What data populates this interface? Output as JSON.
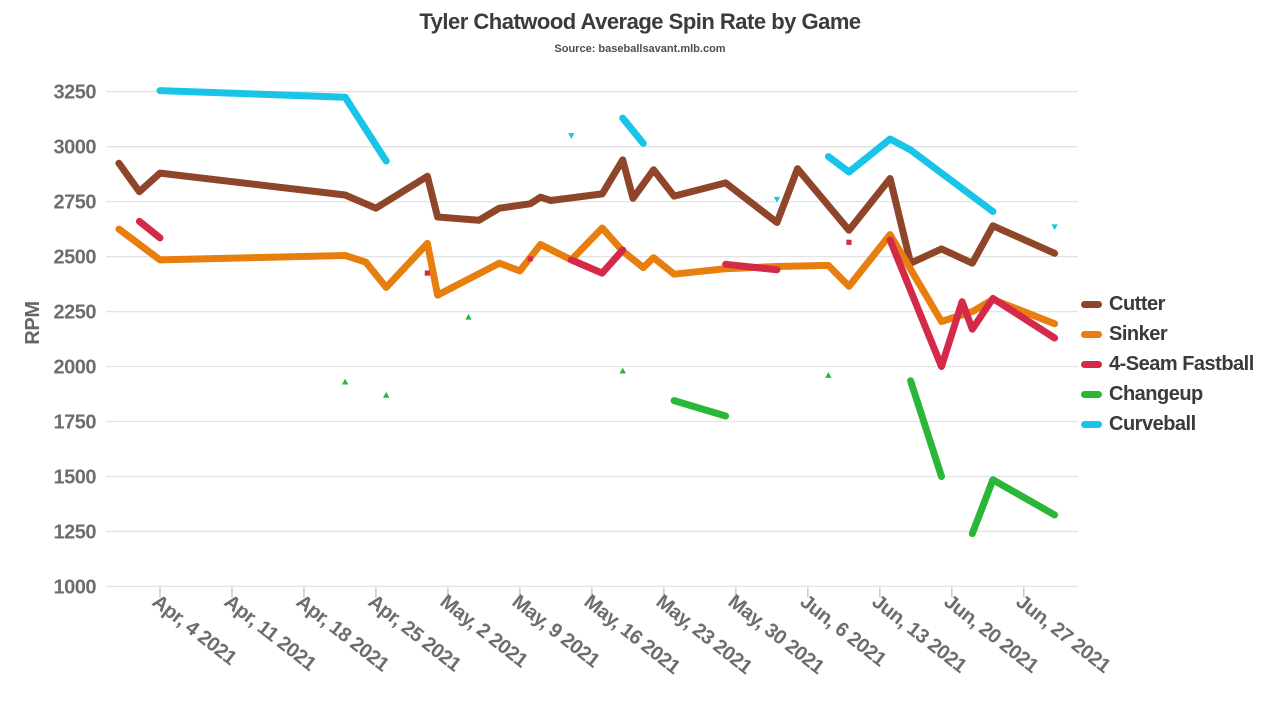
{
  "chart_data": {
    "type": "line",
    "title": "Tyler Chatwood Average Spin Rate by Game",
    "subtitle": "Source: baseballsavant.mlb.com",
    "ylabel": "RPM",
    "ylim": [
      1000,
      3250
    ],
    "y_tick_step": 250,
    "y_ticks": [
      1000,
      1250,
      1500,
      1750,
      2000,
      2250,
      2500,
      2750,
      3000,
      3250
    ],
    "grid": "horizontal",
    "legend_position": "right",
    "x_ticks": [
      {
        "date": "2021-04-04",
        "label": "Apr, 4 2021"
      },
      {
        "date": "2021-04-11",
        "label": "Apr, 11 2021"
      },
      {
        "date": "2021-04-18",
        "label": "Apr, 18 2021"
      },
      {
        "date": "2021-04-25",
        "label": "Apr, 25 2021"
      },
      {
        "date": "2021-05-02",
        "label": "May, 2 2021"
      },
      {
        "date": "2021-05-09",
        "label": "May, 9 2021"
      },
      {
        "date": "2021-05-16",
        "label": "May, 16 2021"
      },
      {
        "date": "2021-05-23",
        "label": "May, 23 2021"
      },
      {
        "date": "2021-05-30",
        "label": "May, 30 2021"
      },
      {
        "date": "2021-06-06",
        "label": "Jun, 6 2021"
      },
      {
        "date": "2021-06-13",
        "label": "Jun, 13 2021"
      },
      {
        "date": "2021-06-20",
        "label": "Jun, 20 2021"
      },
      {
        "date": "2021-06-27",
        "label": "Jun, 27 2021"
      }
    ],
    "series": [
      {
        "name": "Cutter",
        "color": "#8F4529",
        "marker": "square",
        "segments": [
          [
            [
              "2021-03-31",
              2925
            ],
            [
              "2021-04-02",
              2795
            ],
            [
              "2021-04-04",
              2880
            ],
            [
              "2021-04-22",
              2780
            ],
            [
              "2021-04-25",
              2720
            ],
            [
              "2021-04-30",
              2865
            ],
            [
              "2021-05-01",
              2680
            ],
            [
              "2021-05-05",
              2665
            ],
            [
              "2021-05-07",
              2720
            ],
            [
              "2021-05-10",
              2740
            ],
            [
              "2021-05-11",
              2770
            ],
            [
              "2021-05-12",
              2755
            ],
            [
              "2021-05-17",
              2785
            ],
            [
              "2021-05-19",
              2940
            ],
            [
              "2021-05-20",
              2765
            ],
            [
              "2021-05-22",
              2895
            ],
            [
              "2021-05-24",
              2775
            ],
            [
              "2021-05-29",
              2835
            ],
            [
              "2021-06-03",
              2655
            ],
            [
              "2021-06-05",
              2900
            ],
            [
              "2021-06-10",
              2620
            ],
            [
              "2021-06-14",
              2855
            ],
            [
              "2021-06-16",
              2470
            ],
            [
              "2021-06-19",
              2535
            ],
            [
              "2021-06-22",
              2470
            ],
            [
              "2021-06-24",
              2640
            ],
            [
              "2021-06-30",
              2515
            ]
          ]
        ]
      },
      {
        "name": "Sinker",
        "color": "#E87E0E",
        "marker": "square",
        "segments": [
          [
            [
              "2021-03-31",
              2625
            ],
            [
              "2021-04-04",
              2485
            ],
            [
              "2021-04-22",
              2505
            ],
            [
              "2021-04-24",
              2475
            ],
            [
              "2021-04-26",
              2360
            ],
            [
              "2021-04-30",
              2560
            ],
            [
              "2021-05-01",
              2325
            ],
            [
              "2021-05-07",
              2470
            ],
            [
              "2021-05-09",
              2435
            ],
            [
              "2021-05-11",
              2555
            ],
            [
              "2021-05-14",
              2485
            ],
            [
              "2021-05-17",
              2630
            ],
            [
              "2021-05-19",
              2525
            ],
            [
              "2021-05-21",
              2450
            ],
            [
              "2021-05-22",
              2495
            ],
            [
              "2021-05-24",
              2420
            ],
            [
              "2021-05-29",
              2445
            ],
            [
              "2021-06-03",
              2455
            ],
            [
              "2021-06-08",
              2460
            ],
            [
              "2021-06-10",
              2365
            ],
            [
              "2021-06-14",
              2600
            ],
            [
              "2021-06-19",
              2205
            ],
            [
              "2021-06-22",
              2250
            ],
            [
              "2021-06-24",
              2305
            ],
            [
              "2021-06-30",
              2195
            ]
          ]
        ]
      },
      {
        "name": "4-Seam Fastball",
        "color": "#D5294A",
        "marker": "square",
        "segments": [
          [
            [
              "2021-04-02",
              2660
            ],
            [
              "2021-04-04",
              2585
            ]
          ],
          [
            [
              "2021-04-30",
              2425
            ]
          ],
          [
            [
              "2021-05-10",
              2490
            ]
          ],
          [
            [
              "2021-05-14",
              2485
            ],
            [
              "2021-05-17",
              2425
            ],
            [
              "2021-05-19",
              2530
            ]
          ],
          [
            [
              "2021-05-29",
              2465
            ],
            [
              "2021-06-03",
              2440
            ]
          ],
          [
            [
              "2021-06-10",
              2565
            ]
          ],
          [
            [
              "2021-06-14",
              2575
            ],
            [
              "2021-06-19",
              2000
            ],
            [
              "2021-06-21",
              2295
            ],
            [
              "2021-06-22",
              2170
            ],
            [
              "2021-06-24",
              2310
            ],
            [
              "2021-06-30",
              2130
            ]
          ]
        ]
      },
      {
        "name": "Changeup",
        "color": "#2AB737",
        "marker": "triangle-up",
        "segments": [
          [
            [
              "2021-04-22",
              1930
            ]
          ],
          [
            [
              "2021-04-26",
              1870
            ]
          ],
          [
            [
              "2021-05-04",
              2225
            ]
          ],
          [
            [
              "2021-05-19",
              1980
            ]
          ],
          [
            [
              "2021-05-24",
              1845
            ],
            [
              "2021-05-29",
              1775
            ]
          ],
          [
            [
              "2021-06-08",
              1960
            ]
          ],
          [
            [
              "2021-06-16",
              1935
            ],
            [
              "2021-06-19",
              1500
            ]
          ],
          [
            [
              "2021-06-22",
              1240
            ],
            [
              "2021-06-24",
              1485
            ],
            [
              "2021-06-30",
              1325
            ]
          ]
        ]
      },
      {
        "name": "Curveball",
        "color": "#18C5E8",
        "marker": "triangle-down",
        "segments": [
          [
            [
              "2021-04-04",
              3255
            ],
            [
              "2021-04-22",
              3225
            ],
            [
              "2021-04-26",
              2935
            ]
          ],
          [
            [
              "2021-05-14",
              3050
            ]
          ],
          [
            [
              "2021-05-19",
              3130
            ],
            [
              "2021-05-21",
              3015
            ]
          ],
          [
            [
              "2021-06-03",
              2760
            ]
          ],
          [
            [
              "2021-06-08",
              2955
            ],
            [
              "2021-06-10",
              2885
            ],
            [
              "2021-06-14",
              3035
            ],
            [
              "2021-06-16",
              2985
            ],
            [
              "2021-06-24",
              2705
            ]
          ],
          [
            [
              "2021-06-30",
              2635
            ]
          ]
        ]
      }
    ]
  }
}
